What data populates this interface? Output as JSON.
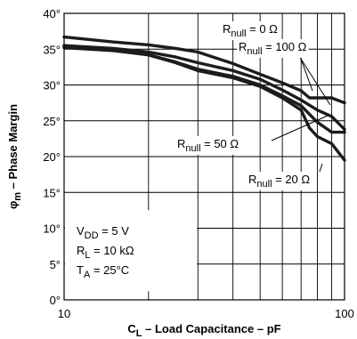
{
  "chart_data": {
    "type": "line",
    "xscale": "log",
    "xlim": [
      10,
      100
    ],
    "ylim": [
      0,
      40
    ],
    "x_ticks": [
      {
        "value": 10,
        "label": "10"
      },
      {
        "value": 100,
        "label": "100"
      }
    ],
    "y_ticks": [
      {
        "value": 0,
        "label": "0°"
      },
      {
        "value": 5,
        "label": "5°"
      },
      {
        "value": 10,
        "label": "10°"
      },
      {
        "value": 15,
        "label": "15°"
      },
      {
        "value": 20,
        "label": "20°"
      },
      {
        "value": 25,
        "label": "25°"
      },
      {
        "value": 30,
        "label": "30°"
      },
      {
        "value": 35,
        "label": "35°"
      },
      {
        "value": 40,
        "label": "40°"
      }
    ],
    "xlabel": {
      "main": "C",
      "sub": "L",
      "rest": " – Load Capacitance – pF"
    },
    "ylabel": {
      "main": "φ",
      "sub": "m",
      "rest": " – Phase Margin"
    },
    "grid": true,
    "conditions": [
      {
        "main": "V",
        "sub": "DD",
        "rest": " = 5 V"
      },
      {
        "main": "R",
        "sub": "L",
        "rest": " = 10 kΩ"
      },
      {
        "main": "T",
        "sub": "A",
        "rest": " = 25°C"
      }
    ],
    "series": [
      {
        "name": {
          "main": "R",
          "sub": "null",
          "rest": " = 0 Ω"
        },
        "x": [
          10,
          15,
          20,
          25,
          30,
          40,
          50,
          60,
          70,
          75,
          80,
          90,
          100
        ],
        "y": [
          36.7,
          36.0,
          35.6,
          35.1,
          34.6,
          33.0,
          31.5,
          30.3,
          29.2,
          28.2,
          28.2,
          28.2,
          27.5
        ]
      },
      {
        "name": {
          "main": "R",
          "sub": "null",
          "rest": " = 100 Ω"
        },
        "x": [
          10,
          15,
          20,
          25,
          30,
          40,
          50,
          60,
          70,
          80,
          90,
          100
        ],
        "y": [
          35.5,
          35.1,
          34.6,
          33.9,
          33.1,
          32.0,
          30.8,
          29.3,
          27.9,
          26.5,
          25.6,
          23.8
        ]
      },
      {
        "name": {
          "main": "R",
          "sub": "null",
          "rest": " = 50 Ω"
        },
        "x": [
          10,
          15,
          20,
          25,
          30,
          40,
          50,
          60,
          70,
          80,
          90,
          100
        ],
        "y": [
          35.4,
          34.9,
          34.2,
          33.2,
          32.2,
          31.2,
          30.0,
          28.5,
          27.1,
          24.8,
          23.4,
          23.4
        ]
      },
      {
        "name": {
          "main": "R",
          "sub": "null",
          "rest": " = 20 Ω"
        },
        "x": [
          10,
          15,
          20,
          25,
          30,
          40,
          50,
          60,
          70,
          75,
          80,
          90,
          100
        ],
        "y": [
          35.2,
          34.8,
          34.2,
          33.1,
          32.0,
          31.0,
          29.8,
          28.2,
          26.5,
          24.0,
          22.8,
          21.8,
          19.5
        ]
      }
    ]
  }
}
